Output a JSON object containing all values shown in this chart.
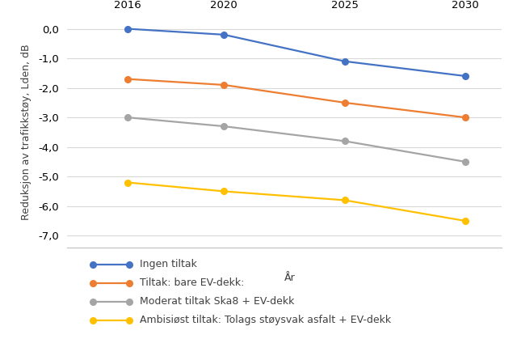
{
  "years": [
    2016,
    2020,
    2025,
    2030
  ],
  "series": [
    {
      "label": "Ingen tiltak",
      "values": [
        0.0,
        -0.2,
        -1.1,
        -1.6
      ],
      "color": "#4472C4",
      "marker": "o"
    },
    {
      "label": "Tiltak: bare EV-dekk:",
      "values": [
        -1.7,
        -1.9,
        -2.5,
        -3.0
      ],
      "color": "#ED7D31",
      "marker": "o"
    },
    {
      "label": "Moderat tiltak Ska8 + EV-dekk",
      "values": [
        -3.0,
        -3.3,
        -3.8,
        -4.5
      ],
      "color": "#A5A5A5",
      "marker": "o"
    },
    {
      "label": "Ambisiøst tiltak: Tolags støysvak asfalt + EV-dekk",
      "values": [
        -5.2,
        -5.5,
        -5.8,
        -6.5
      ],
      "color": "#FFC000",
      "marker": "o"
    }
  ],
  "ylabel": "Reduksjon av trafikkstøy, Lden, dB",
  "xlabel": "År",
  "yticks": [
    0.0,
    -1.0,
    -2.0,
    -3.0,
    -4.0,
    -5.0,
    -6.0,
    -7.0
  ],
  "ylim": [
    -7.4,
    0.4
  ],
  "xlim": [
    2013.5,
    2031.5
  ],
  "background_color": "#FFFFFF",
  "grid_color": "#D9D9D9",
  "axis_fontsize": 9,
  "tick_fontsize": 9.5,
  "legend_fontsize": 9,
  "linewidth": 1.6,
  "markersize": 5.5
}
